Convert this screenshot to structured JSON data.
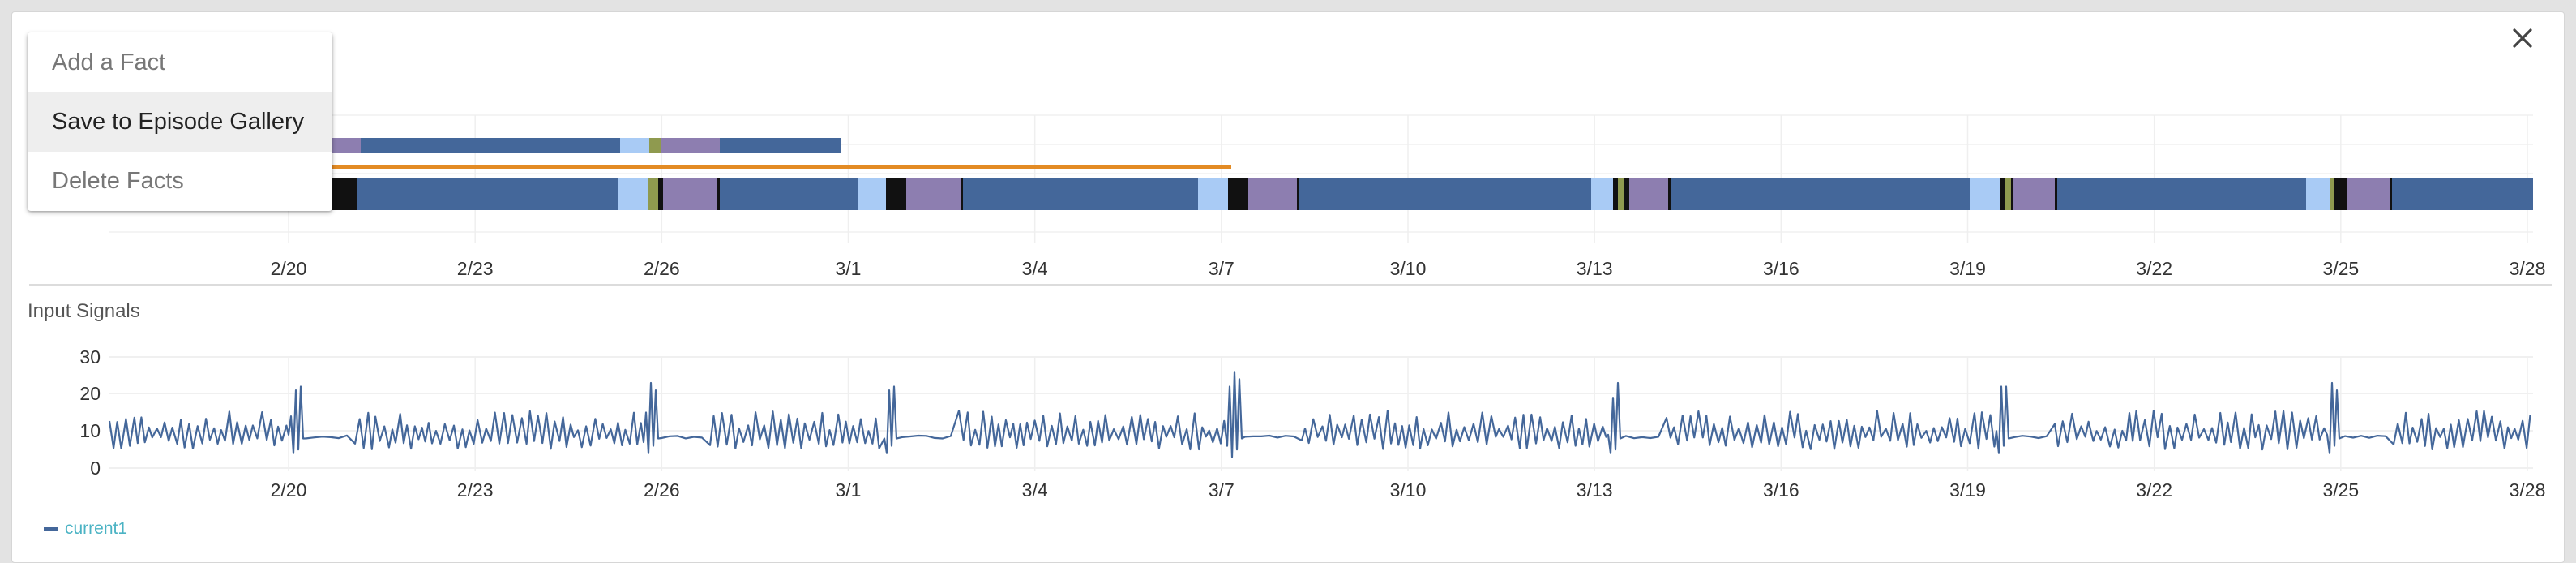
{
  "context_menu": {
    "items": [
      {
        "label": "Add a Fact"
      },
      {
        "label": "Save to Episode Gallery"
      },
      {
        "label": "Delete Facts"
      }
    ],
    "active_index": 1
  },
  "episodes_chart": {
    "x_ticks": [
      "2/20",
      "2/23",
      "2/26",
      "3/1",
      "3/4",
      "3/7",
      "3/10",
      "3/13",
      "3/16",
      "3/19",
      "3/22",
      "3/25",
      "3/28"
    ],
    "colors": {
      "main": "#44679a",
      "light": "#a9cbf5",
      "purple": "#8d7eb0",
      "olive": "#8f9a4f",
      "black": "#111111",
      "orange": "#e38b24"
    }
  },
  "signals_chart": {
    "title": "Input Signals",
    "y_ticks": [
      "30",
      "20",
      "10",
      "0"
    ],
    "x_ticks": [
      "2/20",
      "2/23",
      "2/26",
      "3/1",
      "3/4",
      "3/7",
      "3/10",
      "3/13",
      "3/16",
      "3/19",
      "3/22",
      "3/25",
      "3/28"
    ],
    "y_range": [
      0,
      30
    ]
  },
  "chart_data": {
    "type": "line",
    "x_range": [
      "2/17",
      "3/28"
    ],
    "ylim": [
      0,
      30
    ],
    "series": [
      {
        "name": "current1",
        "color": "#44679a"
      }
    ]
  },
  "legend": {
    "label": "current1",
    "text_color": "#4bb3c4",
    "swatch_color": "#44679a"
  }
}
